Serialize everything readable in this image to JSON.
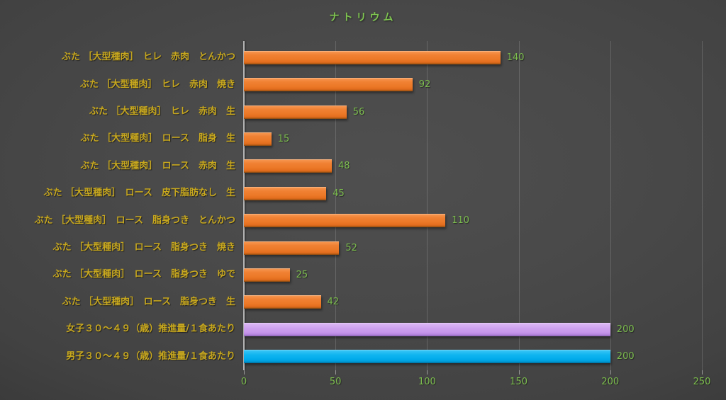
{
  "chart_data": {
    "type": "bar",
    "orientation": "horizontal",
    "title": "ナトリウム",
    "xlabel": "",
    "ylabel": "",
    "xlim": [
      0,
      250
    ],
    "x_ticks": [
      0,
      50,
      100,
      150,
      200,
      250
    ],
    "grid": "vertical gridlines every 50",
    "legend": "none",
    "categories": [
      "ぶた ［大型種肉］　ヒレ　赤肉　とんかつ",
      "ぶた ［大型種肉］　ヒレ　赤肉　焼き",
      "ぶた ［大型種肉］　ヒレ　赤肉　生",
      "ぶた ［大型種肉］　ロース　脂身　生",
      "ぶた ［大型種肉］　ロース　赤肉　生",
      "ぶた ［大型種肉］　ロース　皮下脂肪なし　生",
      "ぶた ［大型種肉］　ロース　脂身つき　とんかつ",
      "ぶた ［大型種肉］　ロース　脂身つき　焼き",
      "ぶた ［大型種肉］　ロース　脂身つき　ゆで",
      "ぶた ［大型種肉］　ロース　脂身つき　生",
      "女子３０～４９（歳）推進量/１食あたり",
      "男子３０～４９（歳）推進量/１食あたり"
    ],
    "values": [
      140,
      92,
      56,
      15,
      48,
      45,
      110,
      52,
      25,
      42,
      200,
      200
    ],
    "bar_color_keys": [
      "orange",
      "orange",
      "orange",
      "orange",
      "orange",
      "orange",
      "orange",
      "orange",
      "orange",
      "orange",
      "purple",
      "blue"
    ],
    "colors": {
      "bar_orange": "#ED7D31",
      "bar_purple": "#C797EB",
      "bar_blue": "#00AEEF",
      "title_text": "#7EC450",
      "value_text": "#7CBD4E",
      "axis_tick_text": "#7CBD4E",
      "category_text": "#C8A81E",
      "axis_line": "#B5B5B5",
      "background": "#3F3F3F"
    }
  }
}
